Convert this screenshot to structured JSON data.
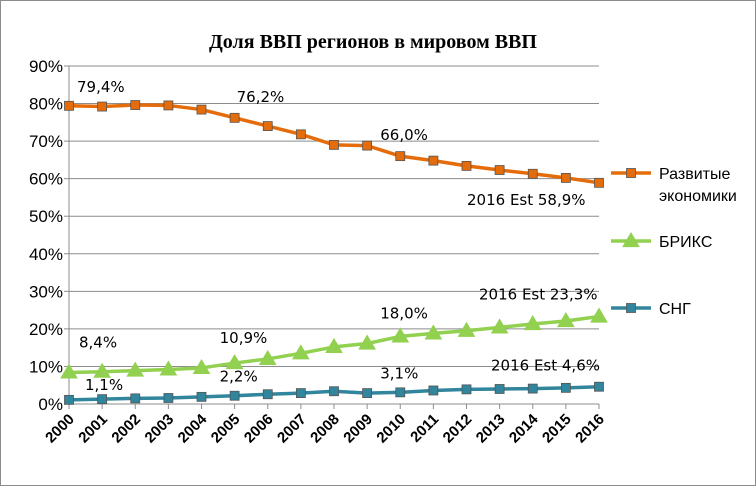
{
  "chart_data": {
    "type": "line",
    "title": "Доля ВВП регионов в мировом ВВП",
    "xlabel": "",
    "ylabel": "",
    "ylim": [
      0,
      90
    ],
    "y_ticks": [
      "0%",
      "10%",
      "20%",
      "30%",
      "40%",
      "50%",
      "60%",
      "70%",
      "80%",
      "90%"
    ],
    "categories": [
      "2000",
      "2001",
      "2002",
      "2003",
      "2004",
      "2005",
      "2006",
      "2007",
      "2008",
      "2009",
      "2010",
      "2011",
      "2012",
      "2013",
      "2014",
      "2015",
      "2016"
    ],
    "legend_position": "right",
    "grid": true,
    "series": [
      {
        "name": "Развитые экономики",
        "name_lines": [
          "Развитые",
          "экономики"
        ],
        "color": "#e46c0a",
        "marker": "square",
        "values": [
          79.4,
          79.2,
          79.6,
          79.5,
          78.4,
          76.2,
          74.0,
          71.8,
          69.0,
          68.8,
          66.0,
          64.8,
          63.4,
          62.3,
          61.3,
          60.2,
          58.9
        ]
      },
      {
        "name": "БРИКС",
        "name_lines": [
          "БРИКС"
        ],
        "color": "#92d050",
        "marker": "triangle",
        "values": [
          8.4,
          8.6,
          8.9,
          9.2,
          9.6,
          10.9,
          12.0,
          13.5,
          15.2,
          16.1,
          18.0,
          18.8,
          19.5,
          20.4,
          21.3,
          22.1,
          23.3
        ]
      },
      {
        "name": "СНГ",
        "name_lines": [
          "СНГ"
        ],
        "color": "#31859c",
        "marker": "square",
        "values": [
          1.1,
          1.3,
          1.5,
          1.6,
          1.9,
          2.2,
          2.6,
          2.9,
          3.4,
          2.9,
          3.1,
          3.6,
          3.9,
          4.0,
          4.1,
          4.3,
          4.6
        ]
      }
    ],
    "annotations": [
      {
        "series": 0,
        "index": 0,
        "text": "79,4%"
      },
      {
        "series": 0,
        "index": 5,
        "text": "76,2%"
      },
      {
        "series": 0,
        "index": 10,
        "text": "66,0%"
      },
      {
        "series": 0,
        "index": 16,
        "text": "2016 Est 58,9%"
      },
      {
        "series": 1,
        "index": 0,
        "text": "8,4%"
      },
      {
        "series": 1,
        "index": 5,
        "text": "10,9%"
      },
      {
        "series": 1,
        "index": 10,
        "text": "18,0%"
      },
      {
        "series": 1,
        "index": 16,
        "text": "2016 Est 23,3%"
      },
      {
        "series": 2,
        "index": 0,
        "text": "1,1%"
      },
      {
        "series": 2,
        "index": 5,
        "text": "2,2%"
      },
      {
        "series": 2,
        "index": 10,
        "text": "3,1%"
      },
      {
        "series": 2,
        "index": 16,
        "text": "2016 Est 4,6%"
      }
    ]
  }
}
